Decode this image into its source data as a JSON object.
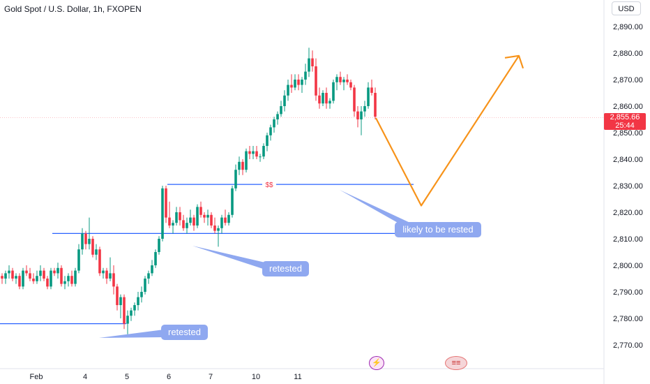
{
  "header": {
    "title": "Gold Spot / U.S. Dollar, 1h, FXOPEN",
    "currency": "USD"
  },
  "price_label": {
    "value": "2,855.66",
    "countdown": "25:44"
  },
  "annotations": {
    "ss_label": "$$",
    "bubble_likely": "likely to be rested",
    "bubble_retested_1": "retested",
    "bubble_retested_2": "retested"
  },
  "events": {
    "icon_1": "lightning-event-icon",
    "icon_2": "us-flag-event-icon"
  },
  "colors": {
    "up": "#089981",
    "down": "#f23645",
    "level_line": "#2962ff",
    "projection": "#f7931a",
    "bubble": "#8fa8f0"
  },
  "chart_data": {
    "type": "candlestick",
    "title": "Gold Spot / U.S. Dollar, 1h, FXOPEN",
    "ylim": [
      2765,
      2895
    ],
    "y_ticks": [
      "2,890.00",
      "2,880.00",
      "2,870.00",
      "2,860.00",
      "2,850.00",
      "2,840.00",
      "2,830.00",
      "2,820.00",
      "2,810.00",
      "2,800.00",
      "2,790.00",
      "2,780.00",
      "2,770.00"
    ],
    "y_tick_values": [
      2890,
      2880,
      2870,
      2860,
      2850,
      2840,
      2830,
      2820,
      2810,
      2800,
      2790,
      2780,
      2770
    ],
    "x_ticks": [
      "Feb",
      "4",
      "5",
      "6",
      "7",
      "10",
      "11"
    ],
    "x_tick_positions": [
      8,
      22,
      34,
      46,
      58,
      71,
      83
    ],
    "candles": [
      [
        2796,
        2797,
        2793,
        2795
      ],
      [
        2795,
        2798,
        2793,
        2797
      ],
      [
        2797,
        2800,
        2795,
        2798
      ],
      [
        2798,
        2799,
        2794,
        2795
      ],
      [
        2795,
        2797,
        2793,
        2796
      ],
      [
        2796,
        2797,
        2791,
        2792
      ],
      [
        2792,
        2799,
        2791,
        2798
      ],
      [
        2798,
        2800,
        2796,
        2797
      ],
      [
        2797,
        2799,
        2794,
        2795
      ],
      [
        2795,
        2797,
        2793,
        2794
      ],
      [
        2794,
        2798,
        2793,
        2796
      ],
      [
        2796,
        2800,
        2794,
        2798
      ],
      [
        2798,
        2799,
        2794,
        2795
      ],
      [
        2795,
        2796,
        2791,
        2792
      ],
      [
        2792,
        2799,
        2791,
        2798
      ],
      [
        2798,
        2799,
        2796,
        2797
      ],
      [
        2797,
        2801,
        2795,
        2799
      ],
      [
        2799,
        2800,
        2792,
        2793
      ],
      [
        2793,
        2796,
        2791,
        2794
      ],
      [
        2794,
        2797,
        2792,
        2796
      ],
      [
        2796,
        2798,
        2792,
        2793
      ],
      [
        2793,
        2799,
        2792,
        2798
      ],
      [
        2798,
        2808,
        2797,
        2806
      ],
      [
        2806,
        2814,
        2804,
        2812
      ],
      [
        2812,
        2813,
        2806,
        2808
      ],
      [
        2808,
        2818,
        2806,
        2810
      ],
      [
        2810,
        2811,
        2803,
        2804
      ],
      [
        2804,
        2808,
        2802,
        2806
      ],
      [
        2806,
        2807,
        2796,
        2797
      ],
      [
        2797,
        2799,
        2795,
        2798
      ],
      [
        2798,
        2799,
        2793,
        2795
      ],
      [
        2795,
        2803,
        2794,
        2797
      ],
      [
        2797,
        2800,
        2789,
        2792
      ],
      [
        2792,
        2793,
        2783,
        2785
      ],
      [
        2785,
        2789,
        2780,
        2788
      ],
      [
        2788,
        2789,
        2776,
        2778
      ],
      [
        2778,
        2783,
        2774,
        2781
      ],
      [
        2781,
        2784,
        2779,
        2783
      ],
      [
        2783,
        2786,
        2781,
        2785
      ],
      [
        2785,
        2790,
        2783,
        2788
      ],
      [
        2788,
        2792,
        2786,
        2790
      ],
      [
        2790,
        2796,
        2789,
        2795
      ],
      [
        2795,
        2798,
        2793,
        2797
      ],
      [
        2797,
        2802,
        2796,
        2800
      ],
      [
        2800,
        2806,
        2799,
        2805
      ],
      [
        2805,
        2811,
        2804,
        2810
      ],
      [
        2810,
        2830,
        2809,
        2829
      ],
      [
        2829,
        2830,
        2816,
        2818
      ],
      [
        2818,
        2824,
        2814,
        2815
      ],
      [
        2815,
        2817,
        2812,
        2816
      ],
      [
        2816,
        2822,
        2815,
        2820
      ],
      [
        2820,
        2822,
        2815,
        2817
      ],
      [
        2817,
        2819,
        2813,
        2814
      ],
      [
        2814,
        2818,
        2812,
        2816
      ],
      [
        2816,
        2821,
        2815,
        2818
      ],
      [
        2818,
        2819,
        2813,
        2815
      ],
      [
        2815,
        2823,
        2814,
        2822
      ],
      [
        2822,
        2824,
        2818,
        2819
      ],
      [
        2819,
        2820,
        2816,
        2818
      ],
      [
        2818,
        2821,
        2815,
        2819
      ],
      [
        2819,
        2820,
        2814,
        2815
      ],
      [
        2815,
        2818,
        2812,
        2813
      ],
      [
        2813,
        2815,
        2807,
        2814
      ],
      [
        2814,
        2819,
        2812,
        2818
      ],
      [
        2818,
        2821,
        2815,
        2816
      ],
      [
        2816,
        2820,
        2815,
        2819
      ],
      [
        2819,
        2830,
        2818,
        2829
      ],
      [
        2829,
        2838,
        2828,
        2836
      ],
      [
        2836,
        2841,
        2834,
        2839
      ],
      [
        2839,
        2840,
        2834,
        2836
      ],
      [
        2836,
        2844,
        2835,
        2843
      ],
      [
        2843,
        2845,
        2840,
        2842
      ],
      [
        2842,
        2845,
        2840,
        2843
      ],
      [
        2843,
        2845,
        2840,
        2841
      ],
      [
        2841,
        2842,
        2839,
        2841
      ],
      [
        2841,
        2846,
        2840,
        2845
      ],
      [
        2845,
        2850,
        2843,
        2849
      ],
      [
        2849,
        2853,
        2847,
        2852
      ],
      [
        2852,
        2856,
        2850,
        2855
      ],
      [
        2855,
        2858,
        2853,
        2857
      ],
      [
        2857,
        2862,
        2856,
        2860
      ],
      [
        2860,
        2866,
        2858,
        2864
      ],
      [
        2864,
        2870,
        2862,
        2868
      ],
      [
        2868,
        2872,
        2865,
        2867
      ],
      [
        2867,
        2872,
        2866,
        2870
      ],
      [
        2870,
        2872,
        2866,
        2868
      ],
      [
        2868,
        2871,
        2865,
        2870
      ],
      [
        2870,
        2876,
        2868,
        2873
      ],
      [
        2873,
        2882,
        2871,
        2878
      ],
      [
        2878,
        2881,
        2873,
        2875
      ],
      [
        2875,
        2878,
        2862,
        2864
      ],
      [
        2864,
        2867,
        2859,
        2861
      ],
      [
        2861,
        2866,
        2860,
        2865
      ],
      [
        2865,
        2867,
        2859,
        2861
      ],
      [
        2861,
        2863,
        2859,
        2862
      ],
      [
        2862,
        2870,
        2861,
        2869
      ],
      [
        2869,
        2872,
        2866,
        2871
      ],
      [
        2871,
        2873,
        2868,
        2869
      ],
      [
        2869,
        2871,
        2866,
        2870
      ],
      [
        2870,
        2872,
        2868,
        2869
      ],
      [
        2869,
        2870,
        2866,
        2867
      ],
      [
        2867,
        2868,
        2856,
        2858
      ],
      [
        2858,
        2860,
        2852,
        2855
      ],
      [
        2855,
        2860,
        2849,
        2858
      ],
      [
        2858,
        2862,
        2856,
        2860
      ],
      [
        2860,
        2869,
        2859,
        2867
      ],
      [
        2867,
        2870,
        2864,
        2865
      ],
      [
        2865,
        2867,
        2855,
        2856
      ]
    ],
    "levels": [
      {
        "label": "$$",
        "price": 2830.5,
        "x_start": 48,
        "x_end": 100
      },
      {
        "price": 2812,
        "x_start": 15,
        "x_end": 100
      },
      {
        "price": 2778,
        "x_start": 0,
        "x_end": 42
      }
    ],
    "projection": [
      [
        107,
        2855.5
      ],
      [
        120,
        2822.5
      ],
      [
        148,
        2879
      ]
    ],
    "last_price": 2855.66,
    "last_price_label": "2,855.66",
    "countdown": "25:44"
  }
}
